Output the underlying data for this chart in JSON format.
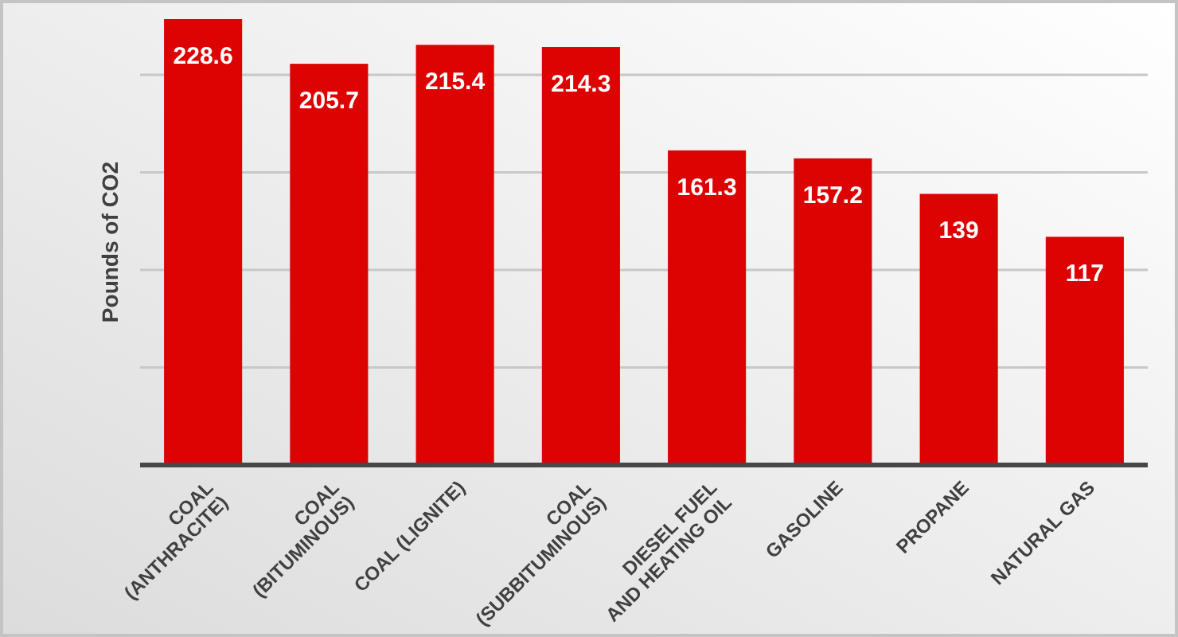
{
  "chart_data": {
    "type": "bar",
    "ylabel": "Pounds of CO2",
    "categories": [
      "COAL (ANTHRACITE)",
      "COAL (BITUMINOUS)",
      "COAL (LIGNITE)",
      "COAL (SUBBITUMINOUS)",
      "DIESEL FUEL AND HEATING OIL",
      "GASOLINE",
      "PROPANE",
      "NATURAL GAS"
    ],
    "values": [
      228.6,
      205.7,
      215.4,
      214.3,
      161.3,
      157.2,
      139,
      117
    ],
    "color": "#dd0303",
    "yticks": [
      {
        "value": 0,
        "label": null
      },
      {
        "value": 50,
        "label": null
      },
      {
        "value": 100,
        "label": null
      },
      {
        "value": 150,
        "label": null
      },
      {
        "value": 200,
        "label": null
      }
    ],
    "grid": "y",
    "tick_labels": "x",
    "data_labels": true
  }
}
